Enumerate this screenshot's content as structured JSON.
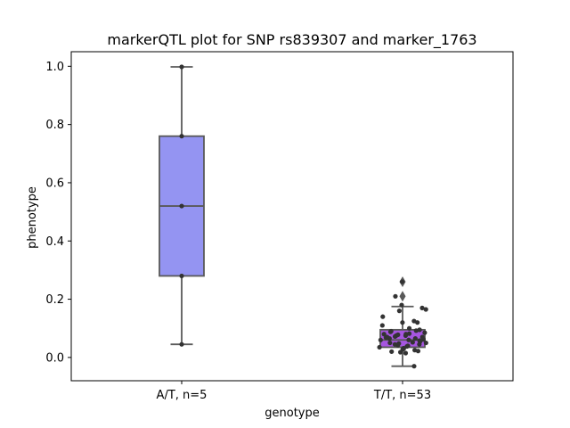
{
  "chart_data": {
    "type": "box",
    "title": "markerQTL plot for SNP rs839307 and marker_1763",
    "xlabel": "genotype",
    "ylabel": "phenotype",
    "ylim": [
      -0.08,
      1.05
    ],
    "yticks": [
      0.0,
      0.2,
      0.4,
      0.6,
      0.8,
      1.0
    ],
    "ytick_labels": [
      "0.0",
      "0.2",
      "0.4",
      "0.6",
      "0.8",
      "1.0"
    ],
    "grid": false,
    "categories": [
      "A/T, n=5",
      "T/T, n=53"
    ],
    "boxes": [
      {
        "category": "A/T, n=5",
        "whisker_low": 0.045,
        "q1": 0.28,
        "median": 0.52,
        "q3": 0.76,
        "whisker_high": 0.998,
        "outliers": [],
        "color": "#9494F2",
        "points": [
          0.045,
          0.28,
          0.52,
          0.76,
          0.998
        ]
      },
      {
        "category": "T/T, n=53",
        "whisker_low": -0.03,
        "q1": 0.035,
        "median": 0.06,
        "q3": 0.095,
        "whisker_high": 0.175,
        "outliers": [
          0.26,
          0.21
        ],
        "color": "#A656E0",
        "points": [
          -0.03,
          0.015,
          0.018,
          0.02,
          0.022,
          0.025,
          0.028,
          0.03,
          0.032,
          0.035,
          0.038,
          0.04,
          0.042,
          0.045,
          0.045,
          0.048,
          0.05,
          0.05,
          0.052,
          0.055,
          0.058,
          0.06,
          0.06,
          0.062,
          0.065,
          0.065,
          0.068,
          0.07,
          0.07,
          0.072,
          0.075,
          0.075,
          0.078,
          0.08,
          0.08,
          0.082,
          0.085,
          0.088,
          0.09,
          0.092,
          0.095,
          0.1,
          0.11,
          0.12,
          0.12,
          0.125,
          0.14,
          0.16,
          0.165,
          0.17,
          0.18,
          0.21,
          0.26
        ]
      }
    ]
  }
}
